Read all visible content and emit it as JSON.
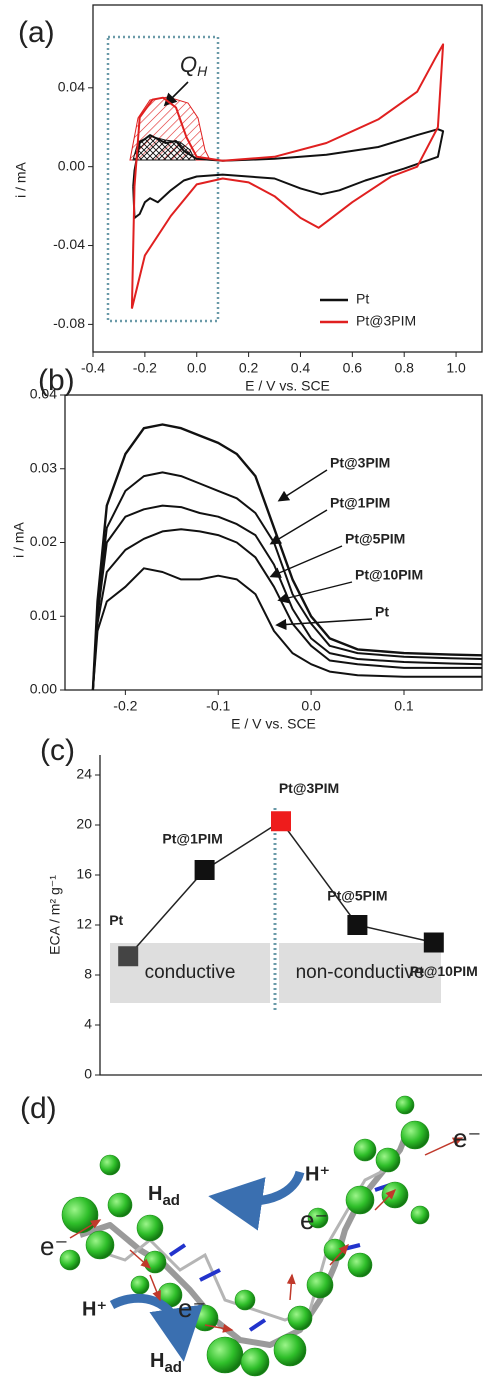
{
  "chart_data": [
    {
      "type": "line",
      "label": "(a)",
      "xlabel": "E / V vs. SCE",
      "ylabel": "i / mA",
      "annotation": {
        "base": "Q",
        "sub": "H"
      },
      "xlim": [
        -0.4,
        1.1
      ],
      "ylim": [
        -0.094,
        0.082
      ],
      "xticks": [
        -0.4,
        -0.2,
        {
          "value": 0,
          "label": "0.0"
        },
        0.2,
        0.4,
        0.6,
        0.8,
        {
          "value": 1,
          "label": "1.0"
        }
      ],
      "yticks": [
        {
          "value": -0.08,
          "label": "-0.08"
        },
        {
          "value": -0.04,
          "label": "-0.04"
        },
        {
          "value": 0,
          "label": "0.00"
        },
        {
          "value": 0.04,
          "label": "0.04"
        }
      ],
      "legend": "lower right",
      "series": [
        {
          "name": "Pt",
          "color": "#111111",
          "x": [
            -0.245,
            -0.24,
            -0.22,
            -0.18,
            -0.15,
            -0.12,
            -0.08,
            -0.05,
            0.0,
            0.1,
            0.3,
            0.5,
            0.7,
            0.85,
            0.93,
            0.95,
            0.93,
            0.8,
            0.65,
            0.55,
            0.48,
            0.4,
            0.3,
            0.1,
            0.0,
            -0.05,
            -0.1,
            -0.15,
            -0.18,
            -0.2,
            -0.22,
            -0.24,
            -0.245
          ],
          "values": [
            -0.01,
            -0.002,
            0.012,
            0.016,
            0.014,
            0.012,
            0.013,
            0.008,
            0.004,
            0.003,
            0.004,
            0.006,
            0.01,
            0.016,
            0.019,
            0.018,
            0.005,
            -0.001,
            -0.007,
            -0.012,
            -0.014,
            -0.011,
            -0.006,
            -0.004,
            -0.005,
            -0.007,
            -0.012,
            -0.018,
            -0.016,
            -0.018,
            -0.024,
            -0.026,
            -0.01
          ]
        },
        {
          "name": "Pt@3PIM",
          "color": "#e02020",
          "x": [
            -0.25,
            -0.24,
            -0.22,
            -0.17,
            -0.13,
            -0.08,
            -0.04,
            0.0,
            0.1,
            0.3,
            0.5,
            0.7,
            0.85,
            0.92,
            0.95,
            0.93,
            0.85,
            0.75,
            0.6,
            0.5,
            0.47,
            0.4,
            0.3,
            0.2,
            0.1,
            0.0,
            -0.1,
            -0.2,
            -0.25
          ],
          "values": [
            -0.072,
            -0.01,
            0.025,
            0.034,
            0.035,
            0.03,
            0.015,
            0.005,
            0.003,
            0.005,
            0.012,
            0.024,
            0.038,
            0.055,
            0.062,
            0.02,
            0.0,
            -0.005,
            -0.018,
            -0.028,
            -0.031,
            -0.026,
            -0.015,
            -0.008,
            -0.006,
            -0.009,
            -0.025,
            -0.045,
            -0.072
          ]
        }
      ]
    },
    {
      "type": "line",
      "label": "(b)",
      "xlabel": "E / V vs. SCE",
      "ylabel": "i / mA",
      "xlim": [
        -0.265,
        0.184
      ],
      "ylim": [
        0,
        0.04
      ],
      "xticks": [
        -0.2,
        -0.1,
        {
          "value": 0,
          "label": "0.0"
        },
        0.1
      ],
      "yticks": [
        {
          "value": 0,
          "label": "0.00"
        },
        {
          "value": 0.01,
          "label": "0.01"
        },
        {
          "value": 0.02,
          "label": "0.02"
        },
        {
          "value": 0.03,
          "label": "0.03"
        },
        {
          "value": 0.04,
          "label": "0.04"
        }
      ],
      "x": [
        -0.235,
        -0.23,
        -0.22,
        -0.2,
        -0.18,
        -0.16,
        -0.14,
        -0.12,
        -0.1,
        -0.08,
        -0.06,
        -0.04,
        -0.02,
        0,
        0.02,
        0.05,
        0.1,
        0.15,
        0.184
      ],
      "series": [
        {
          "name": "Pt@3PIM",
          "color": "#111111",
          "values": [
            0,
            0.012,
            0.025,
            0.032,
            0.0355,
            0.036,
            0.0355,
            0.0345,
            0.0335,
            0.032,
            0.029,
            0.022,
            0.015,
            0.01,
            0.007,
            0.0055,
            0.005,
            0.0048,
            0.0047
          ]
        },
        {
          "name": "Pt@1PIM",
          "color": "#111111",
          "values": [
            0,
            0.011,
            0.022,
            0.027,
            0.029,
            0.0295,
            0.029,
            0.028,
            0.027,
            0.026,
            0.024,
            0.02,
            0.013,
            0.009,
            0.006,
            0.005,
            0.0045,
            0.0043,
            0.0042
          ]
        },
        {
          "name": "Pt@5PIM",
          "color": "#111111",
          "values": [
            0,
            0.01,
            0.02,
            0.0235,
            0.0245,
            0.025,
            0.0248,
            0.024,
            0.0235,
            0.0225,
            0.021,
            0.017,
            0.011,
            0.007,
            0.005,
            0.0042,
            0.0038,
            0.0036,
            0.0035
          ]
        },
        {
          "name": "Pt@10PIM",
          "color": "#111111",
          "values": [
            0,
            0.009,
            0.016,
            0.019,
            0.0205,
            0.0215,
            0.0218,
            0.0215,
            0.021,
            0.02,
            0.018,
            0.014,
            0.009,
            0.006,
            0.004,
            0.0035,
            0.003,
            0.003,
            0.003
          ]
        },
        {
          "name": "Pt",
          "color": "#111111",
          "values": [
            0,
            0.008,
            0.012,
            0.014,
            0.0165,
            0.016,
            0.015,
            0.015,
            0.0155,
            0.015,
            0.013,
            0.008,
            0.005,
            0.0035,
            0.0025,
            0.002,
            0.0018,
            0.0018,
            0.0018
          ]
        }
      ]
    },
    {
      "type": "dot",
      "label": "(c)",
      "ylabel": "ECA / m² g⁻¹",
      "categories": [
        "Pt",
        "Pt@1PIM",
        "Pt@3PIM",
        "Pt@5PIM",
        "Pt@10PIM"
      ],
      "values": [
        9.5,
        16.4,
        20.3,
        12.0,
        10.6
      ],
      "colors": [
        "#444444",
        "#111111",
        "#ee1c1c",
        "#111111",
        "#111111"
      ],
      "ylim": [
        0,
        25.6
      ],
      "yticks": [
        0,
        4,
        8,
        12,
        16,
        20,
        24
      ],
      "annotations": [
        "conductive",
        "non-conductive"
      ]
    }
  ],
  "diagram": {
    "label": "(d)",
    "electrons": [
      "e⁻",
      "e⁻",
      "e⁻",
      "e⁻"
    ],
    "protons": [
      "H⁺",
      "H⁺"
    ],
    "adsorbed": [
      {
        "base": "H",
        "sub": "ad"
      },
      {
        "base": "H",
        "sub": "ad"
      }
    ]
  }
}
